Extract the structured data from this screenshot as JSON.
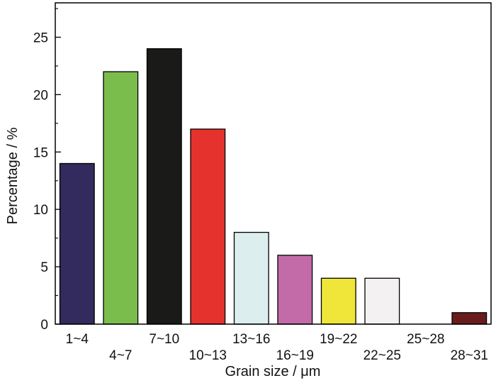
{
  "chart_data": {
    "type": "bar",
    "title": "",
    "xlabel": "Grain size / μm",
    "ylabel": "Percentage / %",
    "ylim": [
      0,
      28
    ],
    "yticks": [
      0,
      5,
      10,
      15,
      20,
      25
    ],
    "categories": [
      "1~4",
      "4~7",
      "7~10",
      "10~13",
      "13~16",
      "16~19",
      "19~22",
      "22~25",
      "25~28",
      "28~31"
    ],
    "values": [
      14,
      22,
      24,
      17,
      8,
      6,
      4,
      4,
      0,
      1
    ],
    "colors": [
      "#332a5e",
      "#7bbd4d",
      "#1a1a18",
      "#e6322d",
      "#dceeed",
      "#c36ba8",
      "#f0e63a",
      "#f3f1f1",
      "#ffffff",
      "#6a1c1c"
    ],
    "grid": false,
    "legend": "none"
  }
}
